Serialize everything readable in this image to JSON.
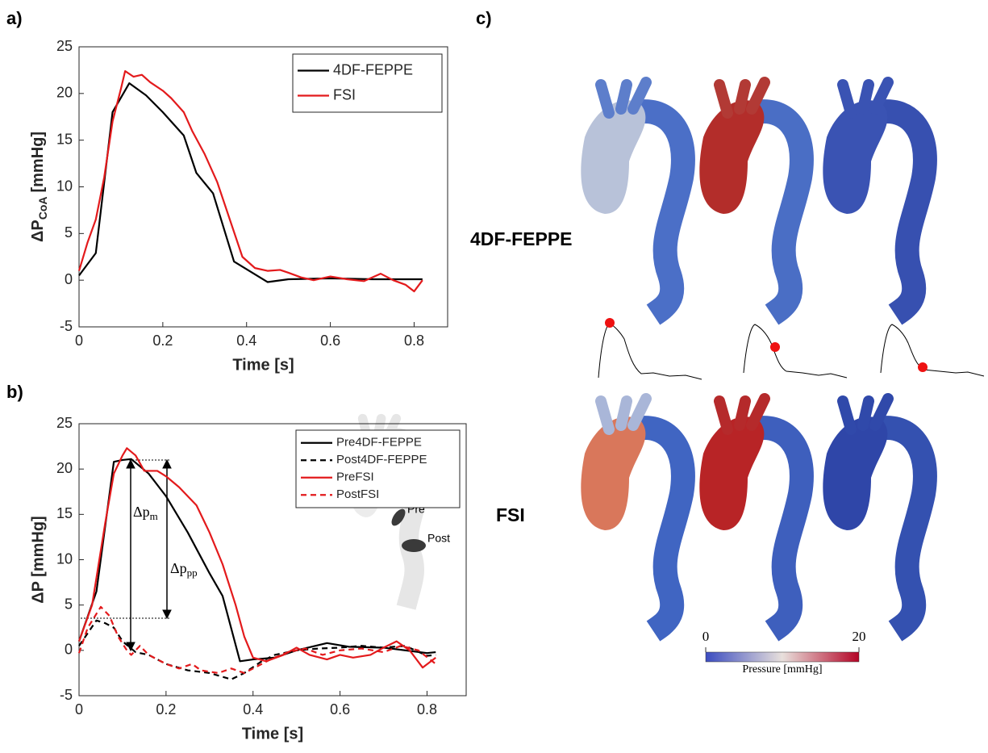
{
  "chart_data": [
    {
      "type": "line",
      "label": "a)",
      "xlabel": "Time [s]",
      "ylabel": {
        "text": "ΔP",
        "sub": "CoA",
        "unit": "[mmHg]"
      },
      "xlim": [
        0,
        0.88
      ],
      "ylim": [
        -5,
        25
      ],
      "xticks": [
        0,
        0.2,
        0.4,
        0.6,
        0.8
      ],
      "yticks": [
        -5,
        0,
        5,
        10,
        15,
        20,
        25
      ],
      "legend": "upper right",
      "series": [
        {
          "name": "4DF-FEPPE",
          "color": "#000000",
          "dash": false,
          "x": [
            0,
            0.04,
            0.08,
            0.12,
            0.16,
            0.2,
            0.25,
            0.28,
            0.32,
            0.37,
            0.45,
            0.5,
            0.6,
            0.7,
            0.82
          ],
          "values": [
            0.5,
            2.9,
            18,
            21.1,
            19.8,
            18,
            15.5,
            11.5,
            9.3,
            2,
            -0.2,
            0.1,
            0.2,
            0.1,
            0.1
          ]
        },
        {
          "name": "FSI",
          "color": "#e31a1c",
          "dash": false,
          "x": [
            0,
            0.02,
            0.04,
            0.06,
            0.08,
            0.1,
            0.11,
            0.13,
            0.15,
            0.17,
            0.2,
            0.22,
            0.25,
            0.27,
            0.3,
            0.33,
            0.36,
            0.39,
            0.42,
            0.45,
            0.48,
            0.5,
            0.53,
            0.56,
            0.6,
            0.64,
            0.68,
            0.72,
            0.75,
            0.78,
            0.8,
            0.82
          ],
          "values": [
            1,
            4,
            6.5,
            11,
            17,
            20.5,
            22.4,
            21.8,
            22,
            21.2,
            20.3,
            19.5,
            18,
            16,
            13.5,
            10.5,
            6.5,
            2.5,
            1.3,
            1.0,
            1.1,
            0.8,
            0.3,
            0,
            0.4,
            0.1,
            -0.1,
            0.7,
            0,
            -0.5,
            -1.2,
            0
          ]
        }
      ]
    },
    {
      "type": "line",
      "label": "b)",
      "xlabel": "Time [s]",
      "ylabel": "ΔP [mmHg]",
      "xlim": [
        0,
        0.89
      ],
      "ylim": [
        -5,
        25
      ],
      "xticks": [
        0,
        0.2,
        0.4,
        0.6,
        0.8
      ],
      "yticks": [
        -5,
        0,
        5,
        10,
        15,
        20,
        25
      ],
      "legend": "upper right",
      "annotations": {
        "mean": {
          "text": "Δp",
          "sub": "m"
        },
        "peak": {
          "text": "Δp",
          "sub": "pp"
        },
        "pre": "Pre",
        "post": "Post"
      },
      "series": [
        {
          "name": "Pre4DF-FEPPE",
          "color": "#000000",
          "dash": false,
          "x": [
            0,
            0.04,
            0.08,
            0.1,
            0.12,
            0.16,
            0.2,
            0.25,
            0.3,
            0.33,
            0.37,
            0.4,
            0.45,
            0.5,
            0.57,
            0.62,
            0.7,
            0.8,
            0.82
          ],
          "values": [
            1,
            6.5,
            20.8,
            21,
            21.1,
            19.5,
            17,
            13,
            8.5,
            6,
            -1.2,
            -1,
            -0.8,
            0,
            0.8,
            0.4,
            0.3,
            -0.3,
            -0.2
          ]
        },
        {
          "name": "Post4DF-FEPPE",
          "color": "#000000",
          "dash": true,
          "x": [
            0,
            0.04,
            0.06,
            0.08,
            0.1,
            0.13,
            0.16,
            0.2,
            0.25,
            0.3,
            0.35,
            0.38,
            0.42,
            0.45,
            0.5,
            0.55,
            0.6,
            0.65,
            0.7,
            0.75,
            0.8,
            0.82
          ],
          "values": [
            0.5,
            3.3,
            3,
            2.5,
            1,
            -0.2,
            -0.5,
            -1.5,
            -2.2,
            -2.5,
            -3.2,
            -2.5,
            -1.2,
            -0.5,
            0,
            0.2,
            0.3,
            0.5,
            0.3,
            0.5,
            -0.6,
            -0.5
          ]
        },
        {
          "name": "PreFSI",
          "color": "#e31a1c",
          "dash": false,
          "x": [
            0,
            0.03,
            0.06,
            0.08,
            0.1,
            0.11,
            0.13,
            0.15,
            0.18,
            0.2,
            0.23,
            0.27,
            0.3,
            0.33,
            0.36,
            0.38,
            0.4,
            0.43,
            0.47,
            0.5,
            0.53,
            0.57,
            0.6,
            0.63,
            0.67,
            0.7,
            0.73,
            0.76,
            0.79,
            0.82
          ],
          "values": [
            1,
            5,
            14,
            19.5,
            21.5,
            22.3,
            21.5,
            19.8,
            19.8,
            19.2,
            18,
            16,
            13,
            9.5,
            5,
            1.5,
            -0.8,
            -1.2,
            -0.5,
            0.3,
            -0.5,
            -1,
            -0.5,
            -0.8,
            -0.5,
            0.3,
            1,
            0,
            -1.9,
            -0.8
          ]
        },
        {
          "name": "PostFSI",
          "color": "#e31a1c",
          "dash": true,
          "x": [
            0,
            0.02,
            0.05,
            0.07,
            0.09,
            0.11,
            0.12,
            0.14,
            0.16,
            0.2,
            0.23,
            0.26,
            0.28,
            0.32,
            0.35,
            0.38,
            0.4,
            0.44,
            0.48,
            0.52,
            0.56,
            0.6,
            0.65,
            0.7,
            0.74,
            0.78,
            0.82
          ],
          "values": [
            -0.3,
            2.5,
            4.8,
            3.8,
            1.5,
            0,
            -0.5,
            0.5,
            -0.5,
            -1.5,
            -2,
            -1.5,
            -2.2,
            -2.5,
            -2,
            -2.5,
            -2,
            -1,
            -0.2,
            0.2,
            -0.5,
            0,
            0.2,
            -0.2,
            0.5,
            0,
            -1.5
          ]
        }
      ]
    }
  ],
  "panel_c": {
    "label": "c)",
    "row_labels": [
      "4DF-FEPPE",
      "FSI"
    ],
    "colorbar": {
      "lim": [
        0,
        20
      ],
      "ticks": [
        0,
        20
      ],
      "label": "Pressure [mmHg]"
    }
  }
}
